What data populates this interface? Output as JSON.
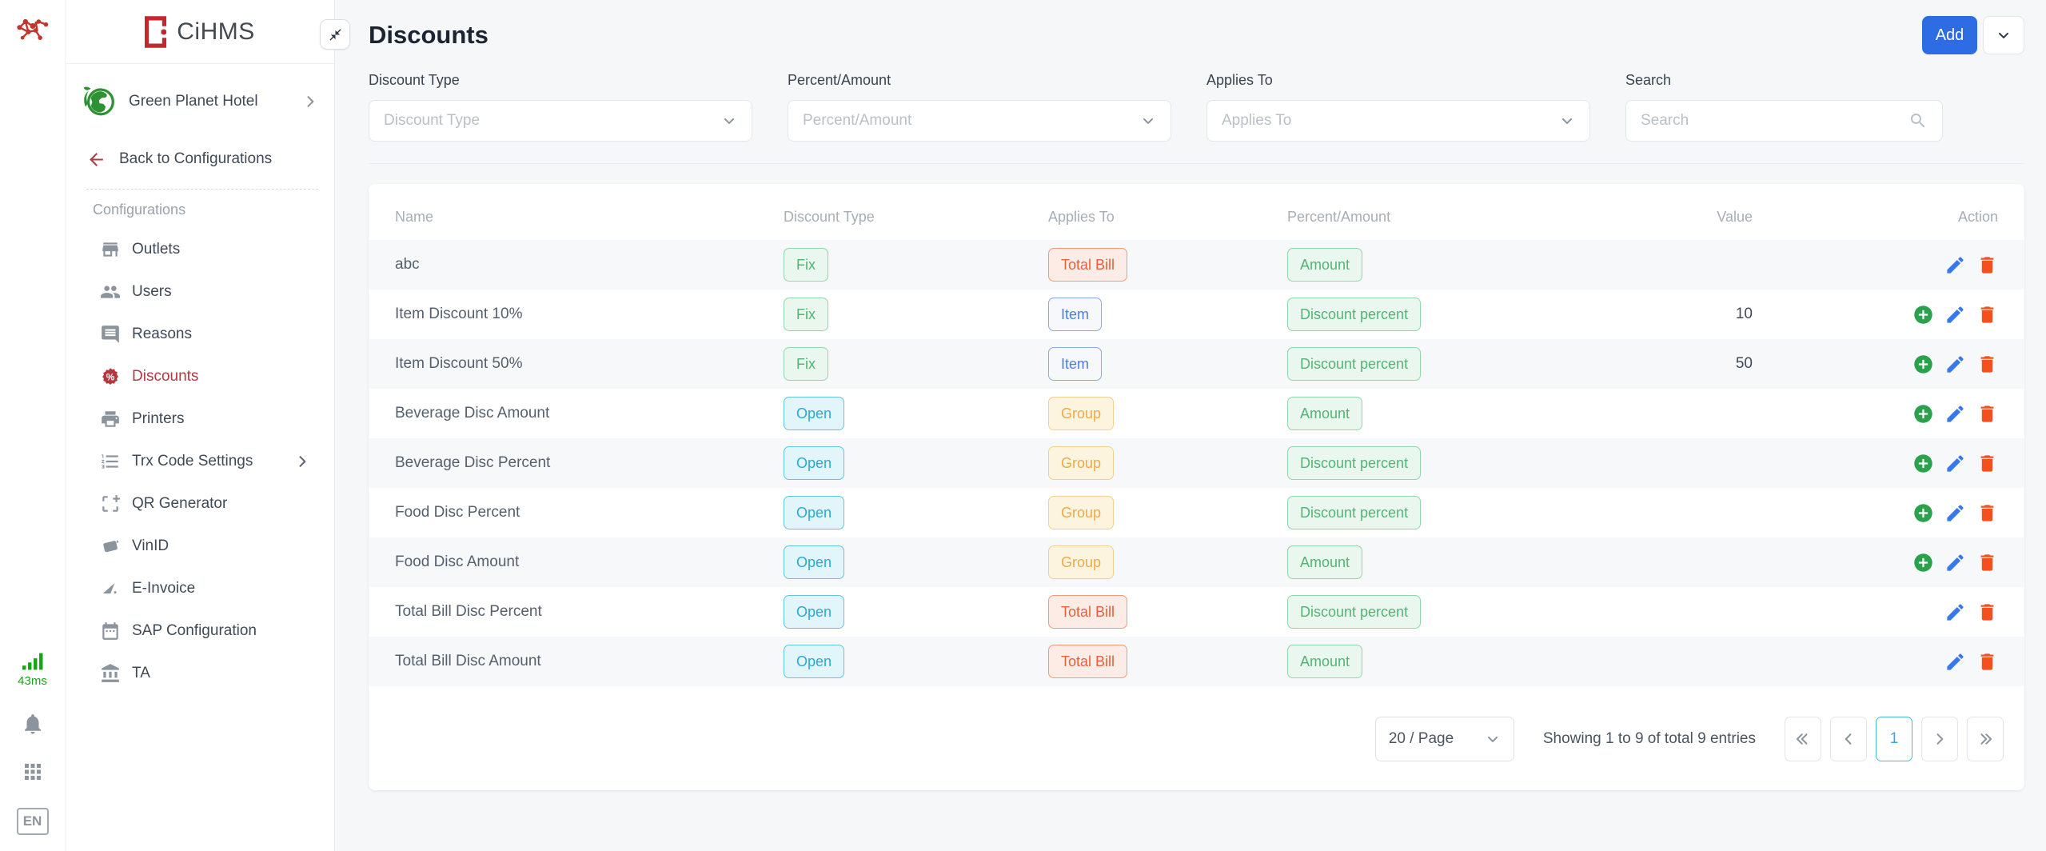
{
  "rail": {
    "latency": "43ms",
    "language": "EN",
    "icons": [
      "network-graph-icon",
      "signal-bars-icon",
      "bell-icon",
      "apps-grid-icon",
      "language-badge"
    ]
  },
  "sidebar": {
    "brand": "CiHMS",
    "hotel_name": "Green Planet Hotel",
    "back_label": "Back to Configurations",
    "section_label": "Configurations",
    "items": [
      {
        "label": "Outlets",
        "icon": "storefront-icon",
        "active": false,
        "chevron": false
      },
      {
        "label": "Users",
        "icon": "users-icon",
        "active": false,
        "chevron": false
      },
      {
        "label": "Reasons",
        "icon": "comment-icon",
        "active": false,
        "chevron": false
      },
      {
        "label": "Discounts",
        "icon": "discount-badge-icon",
        "active": true,
        "chevron": false
      },
      {
        "label": "Printers",
        "icon": "printer-icon",
        "active": false,
        "chevron": false
      },
      {
        "label": "Trx Code Settings",
        "icon": "numbered-list-icon",
        "active": false,
        "chevron": true
      },
      {
        "label": "QR Generator",
        "icon": "qr-generator-icon",
        "active": false,
        "chevron": false
      },
      {
        "label": "VinID",
        "icon": "card-icon",
        "active": false,
        "chevron": false
      },
      {
        "label": "E-Invoice",
        "icon": "invoice-icon",
        "active": false,
        "chevron": false
      },
      {
        "label": "SAP Configuration",
        "icon": "calendar-icon",
        "active": false,
        "chevron": false
      },
      {
        "label": "TA",
        "icon": "bank-icon",
        "active": false,
        "chevron": false
      }
    ]
  },
  "header": {
    "title": "Discounts",
    "add_label": "Add"
  },
  "filters": [
    {
      "label": "Discount Type",
      "placeholder": "Discount Type",
      "type": "select"
    },
    {
      "label": "Percent/Amount",
      "placeholder": "Percent/Amount",
      "type": "select"
    },
    {
      "label": "Applies To",
      "placeholder": "Applies To",
      "type": "select"
    },
    {
      "label": "Search",
      "placeholder": "Search",
      "type": "search"
    }
  ],
  "table": {
    "columns": [
      "Name",
      "Discount Type",
      "Applies To",
      "Percent/Amount",
      "Value",
      "Action"
    ],
    "rows": [
      {
        "name": "abc",
        "discount_type": "Fix",
        "applies_to": "Total Bill",
        "percent_amount": "Amount",
        "value": "",
        "actions": [
          "edit",
          "delete"
        ]
      },
      {
        "name": "Item Discount 10%",
        "discount_type": "Fix",
        "applies_to": "Item",
        "percent_amount": "Discount percent",
        "value": "10",
        "actions": [
          "add",
          "edit",
          "delete"
        ]
      },
      {
        "name": "Item Discount 50%",
        "discount_type": "Fix",
        "applies_to": "Item",
        "percent_amount": "Discount percent",
        "value": "50",
        "actions": [
          "add",
          "edit",
          "delete"
        ]
      },
      {
        "name": "Beverage Disc Amount",
        "discount_type": "Open",
        "applies_to": "Group",
        "percent_amount": "Amount",
        "value": "",
        "actions": [
          "add",
          "edit",
          "delete"
        ]
      },
      {
        "name": "Beverage Disc Percent",
        "discount_type": "Open",
        "applies_to": "Group",
        "percent_amount": "Discount percent",
        "value": "",
        "actions": [
          "add",
          "edit",
          "delete"
        ]
      },
      {
        "name": "Food Disc Percent",
        "discount_type": "Open",
        "applies_to": "Group",
        "percent_amount": "Discount percent",
        "value": "",
        "actions": [
          "add",
          "edit",
          "delete"
        ]
      },
      {
        "name": "Food Disc Amount",
        "discount_type": "Open",
        "applies_to": "Group",
        "percent_amount": "Amount",
        "value": "",
        "actions": [
          "add",
          "edit",
          "delete"
        ]
      },
      {
        "name": "Total Bill Disc Percent",
        "discount_type": "Open",
        "applies_to": "Total Bill",
        "percent_amount": "Discount percent",
        "value": "",
        "actions": [
          "edit",
          "delete"
        ]
      },
      {
        "name": "Total Bill Disc Amount",
        "discount_type": "Open",
        "applies_to": "Total Bill",
        "percent_amount": "Amount",
        "value": "",
        "actions": [
          "edit",
          "delete"
        ]
      }
    ]
  },
  "badge_styles": {
    "Fix": "green",
    "Open": "cyan",
    "Amount": "green",
    "Discount percent": "green",
    "Total Bill": "red",
    "Item": "blue",
    "Group": "amber"
  },
  "pagination": {
    "page_size": "20 / Page",
    "summary": "Showing 1 to 9 of total 9 entries",
    "current_page": "1"
  },
  "colors": {
    "accent_blue": "#2e6ce4",
    "active_red": "#b23a41",
    "brand_red": "#c2282f",
    "add_green": "#2aa24c",
    "edit_blue": "#3878ee",
    "delete_orange": "#f4501e",
    "latency_green": "#17a417",
    "current_page_blue": "#39a8d8",
    "badge_green_text": "#53b377",
    "badge_cyan_text": "#2aa9d3",
    "badge_amber_text": "#eda94a",
    "badge_red_text": "#e8603c",
    "badge_blue_text": "#4a7de0"
  }
}
